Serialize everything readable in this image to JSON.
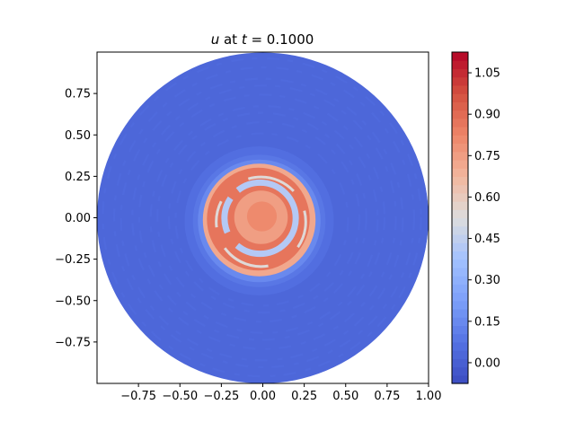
{
  "chart_data": {
    "type": "heatmap",
    "title": {
      "var": "u",
      "mid": " at ",
      "tvar": "t",
      "eq": " = 0.1000"
    },
    "xlabel": "",
    "ylabel": "",
    "xlim": [
      -1.0,
      1.0
    ],
    "ylim": [
      -1.0,
      1.0
    ],
    "xticks": [
      -0.75,
      -0.5,
      -0.25,
      0.0,
      0.25,
      0.5,
      0.75,
      1.0
    ],
    "xtick_labels": [
      "−0.75",
      "−0.50",
      "−0.25",
      "0.00",
      "0.25",
      "0.50",
      "0.75",
      "1.00"
    ],
    "yticks": [
      -0.75,
      -0.5,
      -0.25,
      0.0,
      0.25,
      0.5,
      0.75
    ],
    "ytick_labels": [
      "−0.75",
      "−0.50",
      "−0.25",
      "0.00",
      "0.25",
      "0.50",
      "0.75"
    ],
    "domain": "disk",
    "domain_radius": 1.0,
    "colormap": "coolwarm",
    "colorbar": {
      "vmin": -0.075,
      "vmax": 1.125,
      "ticks": [
        0.0,
        0.15,
        0.3,
        0.45,
        0.6,
        0.75,
        0.9,
        1.05
      ],
      "tick_labels": [
        "0.00",
        "0.15",
        "0.30",
        "0.45",
        "0.60",
        "0.75",
        "0.90",
        "1.05"
      ],
      "levels": 40
    },
    "field": {
      "background_value": 0.03,
      "ring_center": [
        0.0,
        0.0
      ],
      "ring_outer_radius": 0.34,
      "ring_inner_radius": 0.17,
      "ring_value": 0.88,
      "gap_value": 0.42,
      "core_value": 0.82,
      "halo_radius": 0.45,
      "halo_value": 0.18
    }
  }
}
